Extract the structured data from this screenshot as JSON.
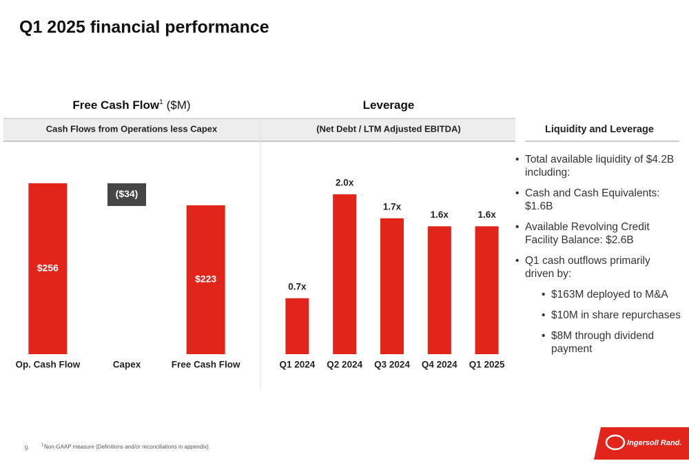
{
  "title": "Q1 2025 financial performance",
  "chart_data": [
    {
      "type": "waterfall",
      "title": "Free Cash Flow",
      "title_note": "1",
      "unit": "($M)",
      "subtitle": "Cash Flows from Operations less Capex",
      "categories": [
        "Op. Cash Flow",
        "Capex",
        "Free Cash Flow"
      ],
      "values": [
        256,
        -34,
        223
      ],
      "value_labels": [
        "$256",
        "($34)",
        "$223"
      ],
      "color": "#e1251b",
      "negative_color": "#454545"
    },
    {
      "type": "bar",
      "title": "Leverage",
      "subtitle": "(Net Debt / LTM Adjusted EBITDA)",
      "categories": [
        "Q1 2024",
        "Q2 2024",
        "Q3 2024",
        "Q4 2024",
        "Q1 2025"
      ],
      "values": [
        0.7,
        2.0,
        1.7,
        1.6,
        1.6
      ],
      "value_labels": [
        "0.7x",
        "2.0x",
        "1.7x",
        "1.6x",
        "1.6x"
      ],
      "color": "#e1251b"
    }
  ],
  "liquidity": {
    "title": "Liquidity and Leverage",
    "bullets": [
      {
        "text": "Total available liquidity of $4.2B including:",
        "level": 0
      },
      {
        "text": "Cash and Cash Equivalents: $1.6B",
        "level": 0
      },
      {
        "text": "Available Revolving Credit Facility Balance: $2.6B",
        "level": 0
      },
      {
        "text": "Q1 cash outflows primarily driven by:",
        "level": 0
      },
      {
        "text": "$163M deployed to M&A",
        "level": 1
      },
      {
        "text": "$10M in share repurchases",
        "level": 1
      },
      {
        "text": "$8M through dividend payment",
        "level": 1
      }
    ]
  },
  "page_number": 9,
  "footnote_mark": "1",
  "footnote": "Non-GAAP measure (Definitions and/or reconciliations in appendix).",
  "logo": "Ingersoll Rand."
}
